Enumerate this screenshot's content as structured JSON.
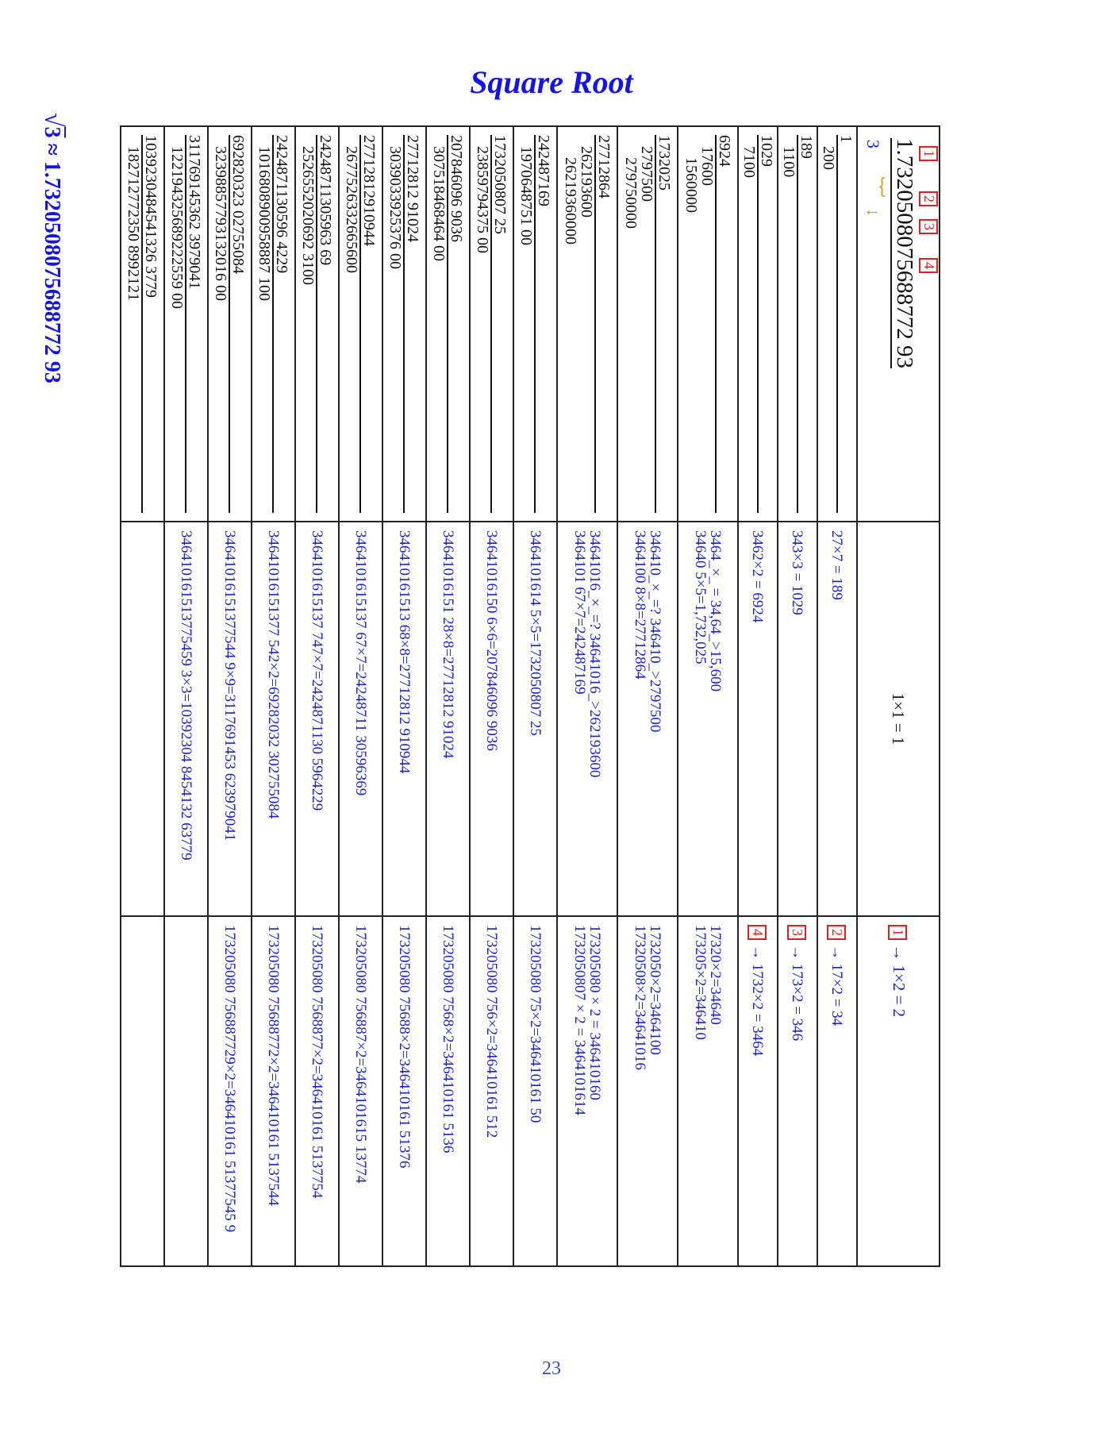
{
  "title": "Square Root",
  "page_number": "23",
  "formula": {
    "symbol": "√",
    "radicand": "3",
    "approx": "≈ 1.7320508075688772 93"
  },
  "root_row": {
    "boxes": [
      "1",
      "2",
      "3",
      "4"
    ],
    "root_value": "1.7320508075688772 93",
    "radicand": "3",
    "mult": "1×1 = 1",
    "double_prefix": "1",
    "double_rest": "→ 1×2 = 2"
  },
  "rows": [
    {
      "left": [
        "1",
        "200"
      ],
      "mid": [
        "27×7 = 189"
      ],
      "right_box": "2",
      "right": [
        "→ 17×2 = 34"
      ]
    },
    {
      "left": [
        "189",
        "1100"
      ],
      "mid": [
        "343×3 = 1029"
      ],
      "right_box": "3",
      "right": [
        "→ 173×2 = 346"
      ]
    },
    {
      "left": [
        "1029",
        "7100"
      ],
      "mid": [
        "3462×2 = 6924"
      ],
      "right_box": "4",
      "right": [
        "→ 1732×2 = 3464"
      ]
    },
    {
      "left": [
        "6924",
        "17600",
        "1560000"
      ],
      "mid": [
        "3464_×_ =     34,64_>15,600",
        "34640 5×5=1,732,025"
      ],
      "right_box": "",
      "right": [
        "17320×2=34640",
        "173205×2=346410"
      ]
    },
    {
      "left": [
        "1732025",
        "2797500",
        "279750000"
      ],
      "mid": [
        "346410_×_=?     346410_>2797500",
        "3464100 8×8=27712864"
      ],
      "right_box": "",
      "right": [
        "1732050×2=3464100",
        "17320508×2=34641016"
      ]
    },
    {
      "left": [
        "27712864",
        "262193600",
        "26219360000"
      ],
      "mid": [
        "34641016_×_=?     34641016_>262193600",
        "3464101 67×7=242487169"
      ],
      "right_box": "",
      "right": [
        "173205080 × 2 = 346410160",
        "1732050807 × 2 = 3464101614"
      ]
    },
    {
      "left": [
        "242487169",
        "1970648751 00"
      ],
      "mid": [
        "3464101614 5×5=1732050807 25"
      ],
      "right_box": "",
      "right": [
        "173205080 75×2=346410161 50"
      ]
    },
    {
      "left": [
        "1732050807 25",
        "23859794375 00"
      ],
      "mid": [
        "34641016150 6×6=207846096 9036"
      ],
      "right_box": "",
      "right": [
        "173205080 756×2=346410161 512"
      ]
    },
    {
      "left": [
        "207846096 9036",
        "307518468464 00"
      ],
      "mid": [
        "34641016151 28×8=27712812 91024"
      ],
      "right_box": "",
      "right": [
        "173205080 7568×2=346410161 5136"
      ]
    },
    {
      "left": [
        "27712812 91024",
        "3039033925376 00"
      ],
      "mid": [
        "346410161513 68×8=27712812 910944"
      ],
      "right_box": "",
      "right": [
        "173205080 75688×2=346410161 51376"
      ]
    },
    {
      "left": [
        "27712812910944",
        "2677526332665600"
      ],
      "mid": [
        "3464101615137 67×7=24248711 30596369"
      ],
      "right_box": "",
      "right": [
        "173205080 756887×2=3464101615 13774"
      ]
    },
    {
      "left": [
        "24248711305963 69",
        "2526552020692 3100"
      ],
      "mid": [
        "3464101615137 747×7=2424871130 5964229"
      ],
      "right_box": "",
      "right": [
        "173205080 7568877×2=346410161 5137754"
      ]
    },
    {
      "left": [
        "2424871130596 4229",
        "1016808900958887 100"
      ],
      "mid": [
        "34641016151377 542×2=69282032 302755084"
      ],
      "right_box": "",
      "right": [
        "173205080 75688772×2=346410161 5137544"
      ]
    },
    {
      "left": [
        "692820323 02755084",
        "32398857793132016 00"
      ],
      "mid": [
        "34641016151377544 9×9=3117691453 623979041"
      ],
      "right_box": "",
      "right": [
        "173205080 756887729×2=346410161 51377545 9"
      ]
    },
    {
      "left": [
        "311769145362 3979041",
        "122194325689222559 00"
      ],
      "mid": [
        "346410161513775459 3×3=10392304 8454132 63779"
      ],
      "right_box": "",
      "right": []
    },
    {
      "left": [
        "1039230484541326 3779",
        "182712772350 8992121"
      ],
      "mid": [],
      "right_box": "",
      "right": []
    }
  ]
}
